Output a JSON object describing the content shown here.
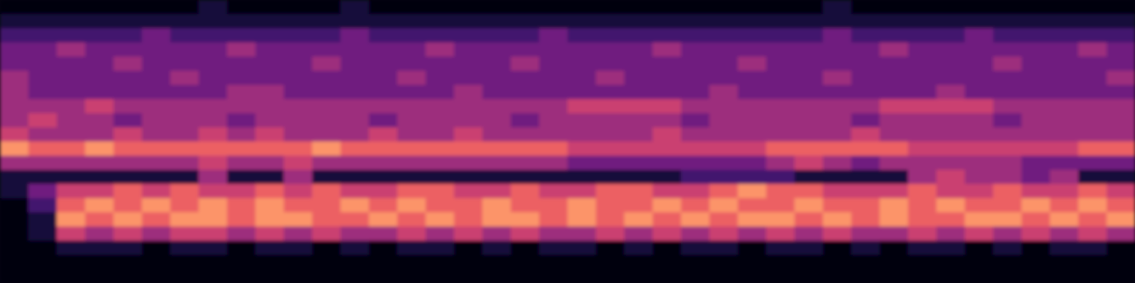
{
  "chart_data": {
    "type": "heatmap",
    "tick_labels": false,
    "grid": false,
    "zlim": [
      0,
      9
    ],
    "cells": [
      [
        0,
        0,
        0,
        0,
        0,
        0,
        0,
        1,
        0,
        0,
        0,
        0,
        1,
        0,
        0,
        0,
        0,
        0,
        0,
        0,
        0,
        0,
        0,
        0,
        0,
        0,
        0,
        0,
        0,
        1,
        0,
        0,
        0,
        0,
        0,
        0,
        0,
        0,
        0,
        0
      ],
      [
        1,
        1,
        1,
        1,
        1,
        1,
        1,
        1,
        1,
        1,
        1,
        1,
        1,
        1,
        1,
        1,
        1,
        1,
        1,
        1,
        1,
        1,
        1,
        1,
        1,
        1,
        1,
        1,
        1,
        1,
        1,
        1,
        1,
        1,
        1,
        1,
        1,
        1,
        1,
        1
      ],
      [
        2,
        2,
        2,
        2,
        2,
        3,
        2,
        2,
        2,
        2,
        2,
        2,
        3,
        2,
        2,
        2,
        2,
        2,
        2,
        3,
        2,
        2,
        2,
        2,
        2,
        2,
        2,
        2,
        2,
        3,
        2,
        2,
        2,
        2,
        3,
        2,
        2,
        2,
        2,
        2
      ],
      [
        3,
        3,
        4,
        3,
        3,
        3,
        3,
        3,
        4,
        3,
        3,
        3,
        3,
        3,
        3,
        4,
        3,
        3,
        3,
        3,
        3,
        3,
        3,
        4,
        3,
        3,
        3,
        3,
        3,
        3,
        3,
        4,
        3,
        3,
        3,
        3,
        3,
        3,
        4,
        3
      ],
      [
        3,
        3,
        3,
        3,
        4,
        3,
        3,
        3,
        3,
        3,
        3,
        4,
        3,
        3,
        3,
        3,
        3,
        3,
        4,
        3,
        3,
        3,
        3,
        3,
        3,
        3,
        4,
        3,
        3,
        3,
        3,
        3,
        3,
        3,
        3,
        4,
        3,
        3,
        3,
        3
      ],
      [
        4,
        3,
        3,
        3,
        3,
        3,
        4,
        3,
        3,
        3,
        3,
        3,
        3,
        3,
        4,
        3,
        3,
        3,
        3,
        3,
        3,
        4,
        3,
        3,
        3,
        3,
        3,
        3,
        3,
        4,
        3,
        3,
        3,
        3,
        3,
        3,
        3,
        3,
        3,
        4
      ],
      [
        4,
        3,
        3,
        3,
        3,
        3,
        3,
        3,
        4,
        4,
        3,
        3,
        3,
        3,
        3,
        3,
        4,
        3,
        3,
        3,
        3,
        3,
        3,
        3,
        3,
        4,
        3,
        3,
        3,
        3,
        3,
        3,
        3,
        4,
        3,
        3,
        3,
        3,
        3,
        3
      ],
      [
        4,
        4,
        4,
        5,
        4,
        4,
        4,
        4,
        4,
        4,
        4,
        4,
        4,
        4,
        4,
        4,
        4,
        4,
        4,
        4,
        5,
        5,
        5,
        5,
        4,
        4,
        4,
        4,
        4,
        4,
        4,
        5,
        5,
        5,
        5,
        4,
        4,
        4,
        4,
        4
      ],
      [
        4,
        5,
        4,
        4,
        3,
        4,
        4,
        4,
        3,
        4,
        4,
        4,
        4,
        3,
        4,
        4,
        4,
        4,
        3,
        4,
        4,
        4,
        4,
        4,
        3,
        4,
        4,
        4,
        4,
        4,
        3,
        4,
        4,
        4,
        4,
        3,
        4,
        4,
        4,
        4
      ],
      [
        5,
        4,
        4,
        4,
        5,
        4,
        4,
        5,
        4,
        5,
        4,
        4,
        4,
        5,
        4,
        4,
        5,
        4,
        4,
        4,
        4,
        4,
        4,
        5,
        4,
        4,
        4,
        4,
        4,
        4,
        5,
        4,
        4,
        4,
        4,
        4,
        4,
        4,
        4,
        4
      ],
      [
        7,
        6,
        6,
        7,
        6,
        6,
        6,
        6,
        6,
        6,
        6,
        7,
        6,
        6,
        6,
        6,
        6,
        6,
        6,
        6,
        5,
        5,
        5,
        5,
        5,
        5,
        5,
        6,
        6,
        6,
        6,
        6,
        5,
        5,
        5,
        5,
        5,
        5,
        6,
        6
      ],
      [
        4,
        4,
        4,
        4,
        4,
        4,
        4,
        5,
        4,
        4,
        5,
        4,
        4,
        4,
        4,
        4,
        4,
        4,
        4,
        4,
        3,
        3,
        3,
        3,
        3,
        3,
        3,
        4,
        5,
        4,
        3,
        4,
        4,
        4,
        4,
        4,
        3,
        3,
        3,
        3
      ],
      [
        1,
        1,
        1,
        1,
        1,
        1,
        1,
        4,
        1,
        1,
        4,
        1,
        1,
        1,
        1,
        1,
        1,
        1,
        1,
        1,
        1,
        1,
        1,
        1,
        2,
        2,
        2,
        2,
        1,
        1,
        1,
        1,
        4,
        5,
        4,
        4,
        3,
        4,
        1,
        1
      ],
      [
        1,
        3,
        5,
        5,
        6,
        5,
        6,
        5,
        5,
        6,
        5,
        6,
        5,
        5,
        6,
        6,
        5,
        5,
        6,
        5,
        5,
        6,
        6,
        5,
        5,
        6,
        7,
        6,
        6,
        5,
        5,
        5,
        6,
        5,
        5,
        6,
        5,
        5,
        6,
        5
      ],
      [
        0,
        2,
        6,
        7,
        6,
        7,
        6,
        7,
        6,
        7,
        6,
        6,
        7,
        6,
        7,
        6,
        6,
        7,
        6,
        6,
        7,
        6,
        6,
        7,
        6,
        7,
        6,
        6,
        7,
        6,
        6,
        7,
        6,
        7,
        6,
        6,
        7,
        6,
        7,
        6
      ],
      [
        0,
        1,
        7,
        6,
        7,
        6,
        7,
        7,
        6,
        7,
        7,
        6,
        6,
        7,
        6,
        7,
        6,
        7,
        7,
        6,
        7,
        6,
        7,
        6,
        7,
        6,
        7,
        7,
        6,
        7,
        6,
        7,
        6,
        6,
        7,
        7,
        6,
        7,
        6,
        7
      ],
      [
        0,
        1,
        5,
        4,
        5,
        4,
        5,
        5,
        4,
        5,
        4,
        5,
        4,
        4,
        5,
        4,
        5,
        4,
        5,
        4,
        4,
        5,
        4,
        5,
        4,
        5,
        4,
        5,
        4,
        5,
        4,
        4,
        5,
        4,
        5,
        4,
        5,
        4,
        5,
        4
      ],
      [
        0,
        0,
        1,
        1,
        1,
        0,
        1,
        1,
        0,
        1,
        1,
        0,
        1,
        0,
        1,
        1,
        0,
        1,
        0,
        1,
        1,
        0,
        1,
        0,
        1,
        1,
        0,
        1,
        1,
        0,
        1,
        0,
        1,
        1,
        0,
        1,
        0,
        1,
        1,
        0
      ],
      [
        0,
        0,
        0,
        0,
        0,
        0,
        0,
        0,
        0,
        0,
        0,
        0,
        0,
        0,
        0,
        0,
        0,
        0,
        0,
        0,
        0,
        0,
        0,
        0,
        0,
        0,
        0,
        0,
        0,
        0,
        0,
        0,
        0,
        0,
        0,
        0,
        0,
        0,
        0,
        0
      ],
      [
        0,
        0,
        0,
        0,
        0,
        0,
        0,
        0,
        0,
        0,
        0,
        0,
        0,
        0,
        0,
        0,
        0,
        0,
        0,
        0,
        0,
        0,
        0,
        0,
        0,
        0,
        0,
        0,
        0,
        0,
        0,
        0,
        0,
        0,
        0,
        0,
        0,
        0,
        0,
        0
      ]
    ]
  }
}
